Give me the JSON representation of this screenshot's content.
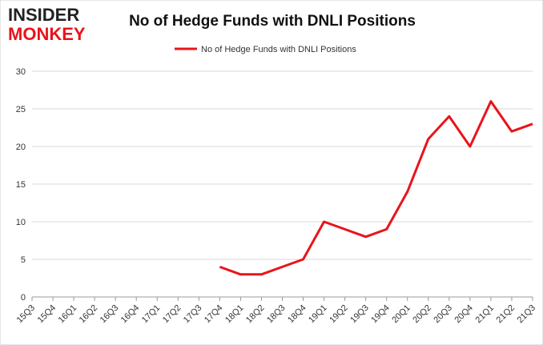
{
  "logo": {
    "line1": "INSIDER",
    "line2": "MONKEY"
  },
  "chart_data": {
    "type": "line",
    "title": "No of Hedge Funds with DNLI Positions",
    "categories": [
      "15Q3",
      "15Q4",
      "16Q1",
      "16Q2",
      "16Q3",
      "16Q4",
      "17Q1",
      "17Q2",
      "17Q3",
      "17Q4",
      "18Q1",
      "18Q2",
      "18Q3",
      "18Q4",
      "19Q1",
      "19Q2",
      "19Q3",
      "19Q4",
      "20Q1",
      "20Q2",
      "20Q3",
      "20Q4",
      "21Q1",
      "21Q2",
      "21Q3"
    ],
    "series": [
      {
        "name": "No of Hedge Funds with DNLI Positions",
        "color": "#e8141b",
        "values": [
          null,
          null,
          null,
          null,
          null,
          null,
          null,
          null,
          null,
          4,
          3,
          3,
          4,
          5,
          10,
          9,
          8,
          9,
          14,
          21,
          24,
          20,
          26,
          22,
          23
        ]
      }
    ],
    "ylim": [
      0,
      30
    ],
    "yticks": [
      0,
      5,
      10,
      15,
      20,
      25,
      30
    ],
    "grid": true,
    "legend": "top"
  }
}
